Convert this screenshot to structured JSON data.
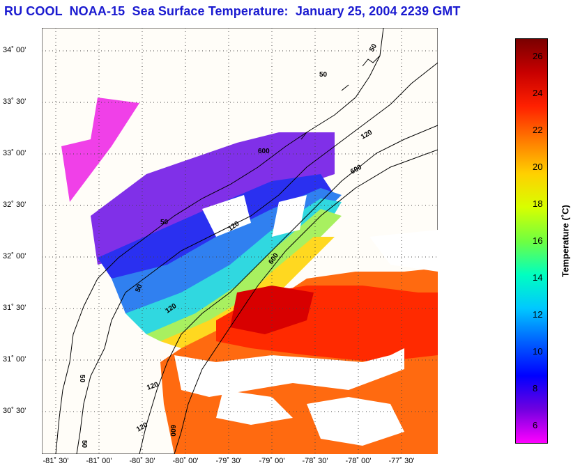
{
  "title": "RU COOL  NOAA-15  Sea Surface Temperature:  January 25, 2004 2239 GMT",
  "map": {
    "lat_labels": [
      "34˚ 00'",
      "33˚ 30'",
      "33˚ 00'",
      "32˚ 30'",
      "32˚ 00'",
      "31˚ 30'",
      "31˚ 00'",
      "30˚ 30'"
    ],
    "lon_labels": [
      "-81˚ 30'",
      "-81˚ 00'",
      "-80˚ 30'",
      "-80˚ 00'",
      "-79˚ 30'",
      "-79˚ 00'",
      "-78˚ 30'",
      "-78˚ 00'",
      "-77˚ 30'"
    ],
    "contour_labels": [
      "50",
      "50",
      "120",
      "600",
      "50",
      "120",
      "600",
      "50",
      "120",
      "600",
      "120",
      "600",
      "120",
      "50",
      "50"
    ]
  },
  "colorbar": {
    "title": "Temperature (˚C)",
    "ticks": [
      "26",
      "24",
      "22",
      "20",
      "18",
      "16",
      "14",
      "12",
      "10",
      "8",
      "6"
    ],
    "range": [
      5,
      27
    ],
    "colors": [
      "#7a0000",
      "#c80000",
      "#ff2000",
      "#ff7a00",
      "#ffd000",
      "#d8ff00",
      "#70ff40",
      "#00ffc0",
      "#00c8ff",
      "#0060ff",
      "#0000ff",
      "#7000e0",
      "#ff00ff"
    ]
  }
}
